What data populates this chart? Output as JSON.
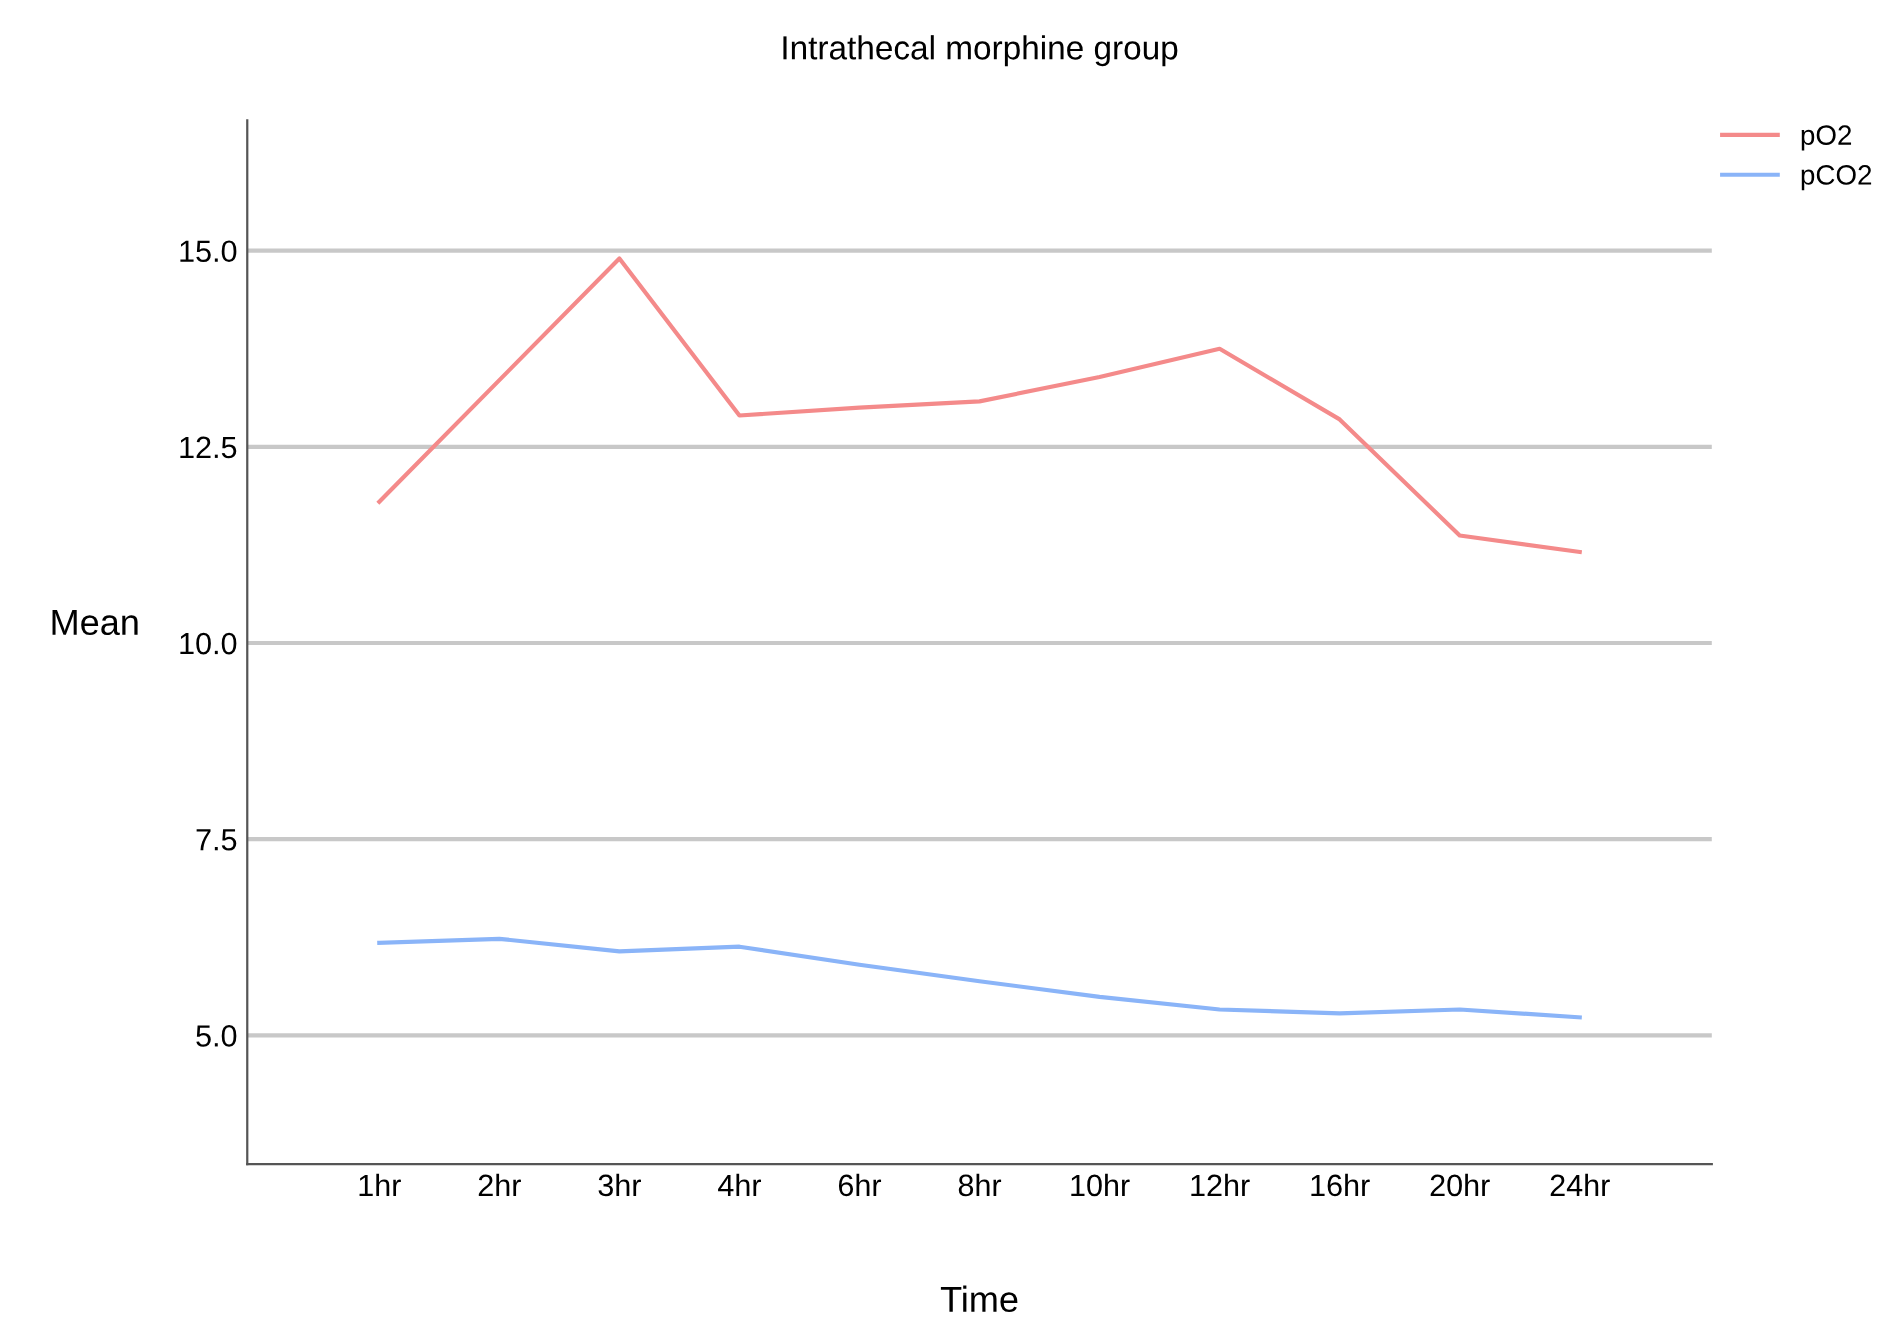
{
  "chart_data": {
    "type": "line",
    "title": "Intrathecal morphine group",
    "xlabel": "Time",
    "ylabel": "Mean",
    "categories": [
      "1hr",
      "2hr",
      "3hr",
      "4hr",
      "6hr",
      "8hr",
      "10hr",
      "12hr",
      "16hr",
      "20hr",
      "24hr"
    ],
    "series": [
      {
        "name": "pO2",
        "color": "#f48a8a",
        "values": [
          11.8,
          13.35,
          14.9,
          12.9,
          13.0,
          13.08,
          13.39,
          13.75,
          12.85,
          11.37,
          11.16
        ]
      },
      {
        "name": "pCO2",
        "color": "#8ab4f8",
        "values": [
          6.18,
          6.23,
          6.07,
          6.13,
          5.9,
          5.69,
          5.49,
          5.33,
          5.28,
          5.33,
          5.23
        ]
      }
    ],
    "ylim": [
      3.36,
      16.66
    ],
    "yticks": [
      {
        "value": 5,
        "label": "5.0"
      },
      7.5,
      {
        "value": 10,
        "label": "10.0"
      },
      12.5,
      {
        "value": 15,
        "label": "15.0"
      }
    ],
    "grid": "y",
    "legend": "top right",
    "marker": "none",
    "line_style": "solid"
  }
}
